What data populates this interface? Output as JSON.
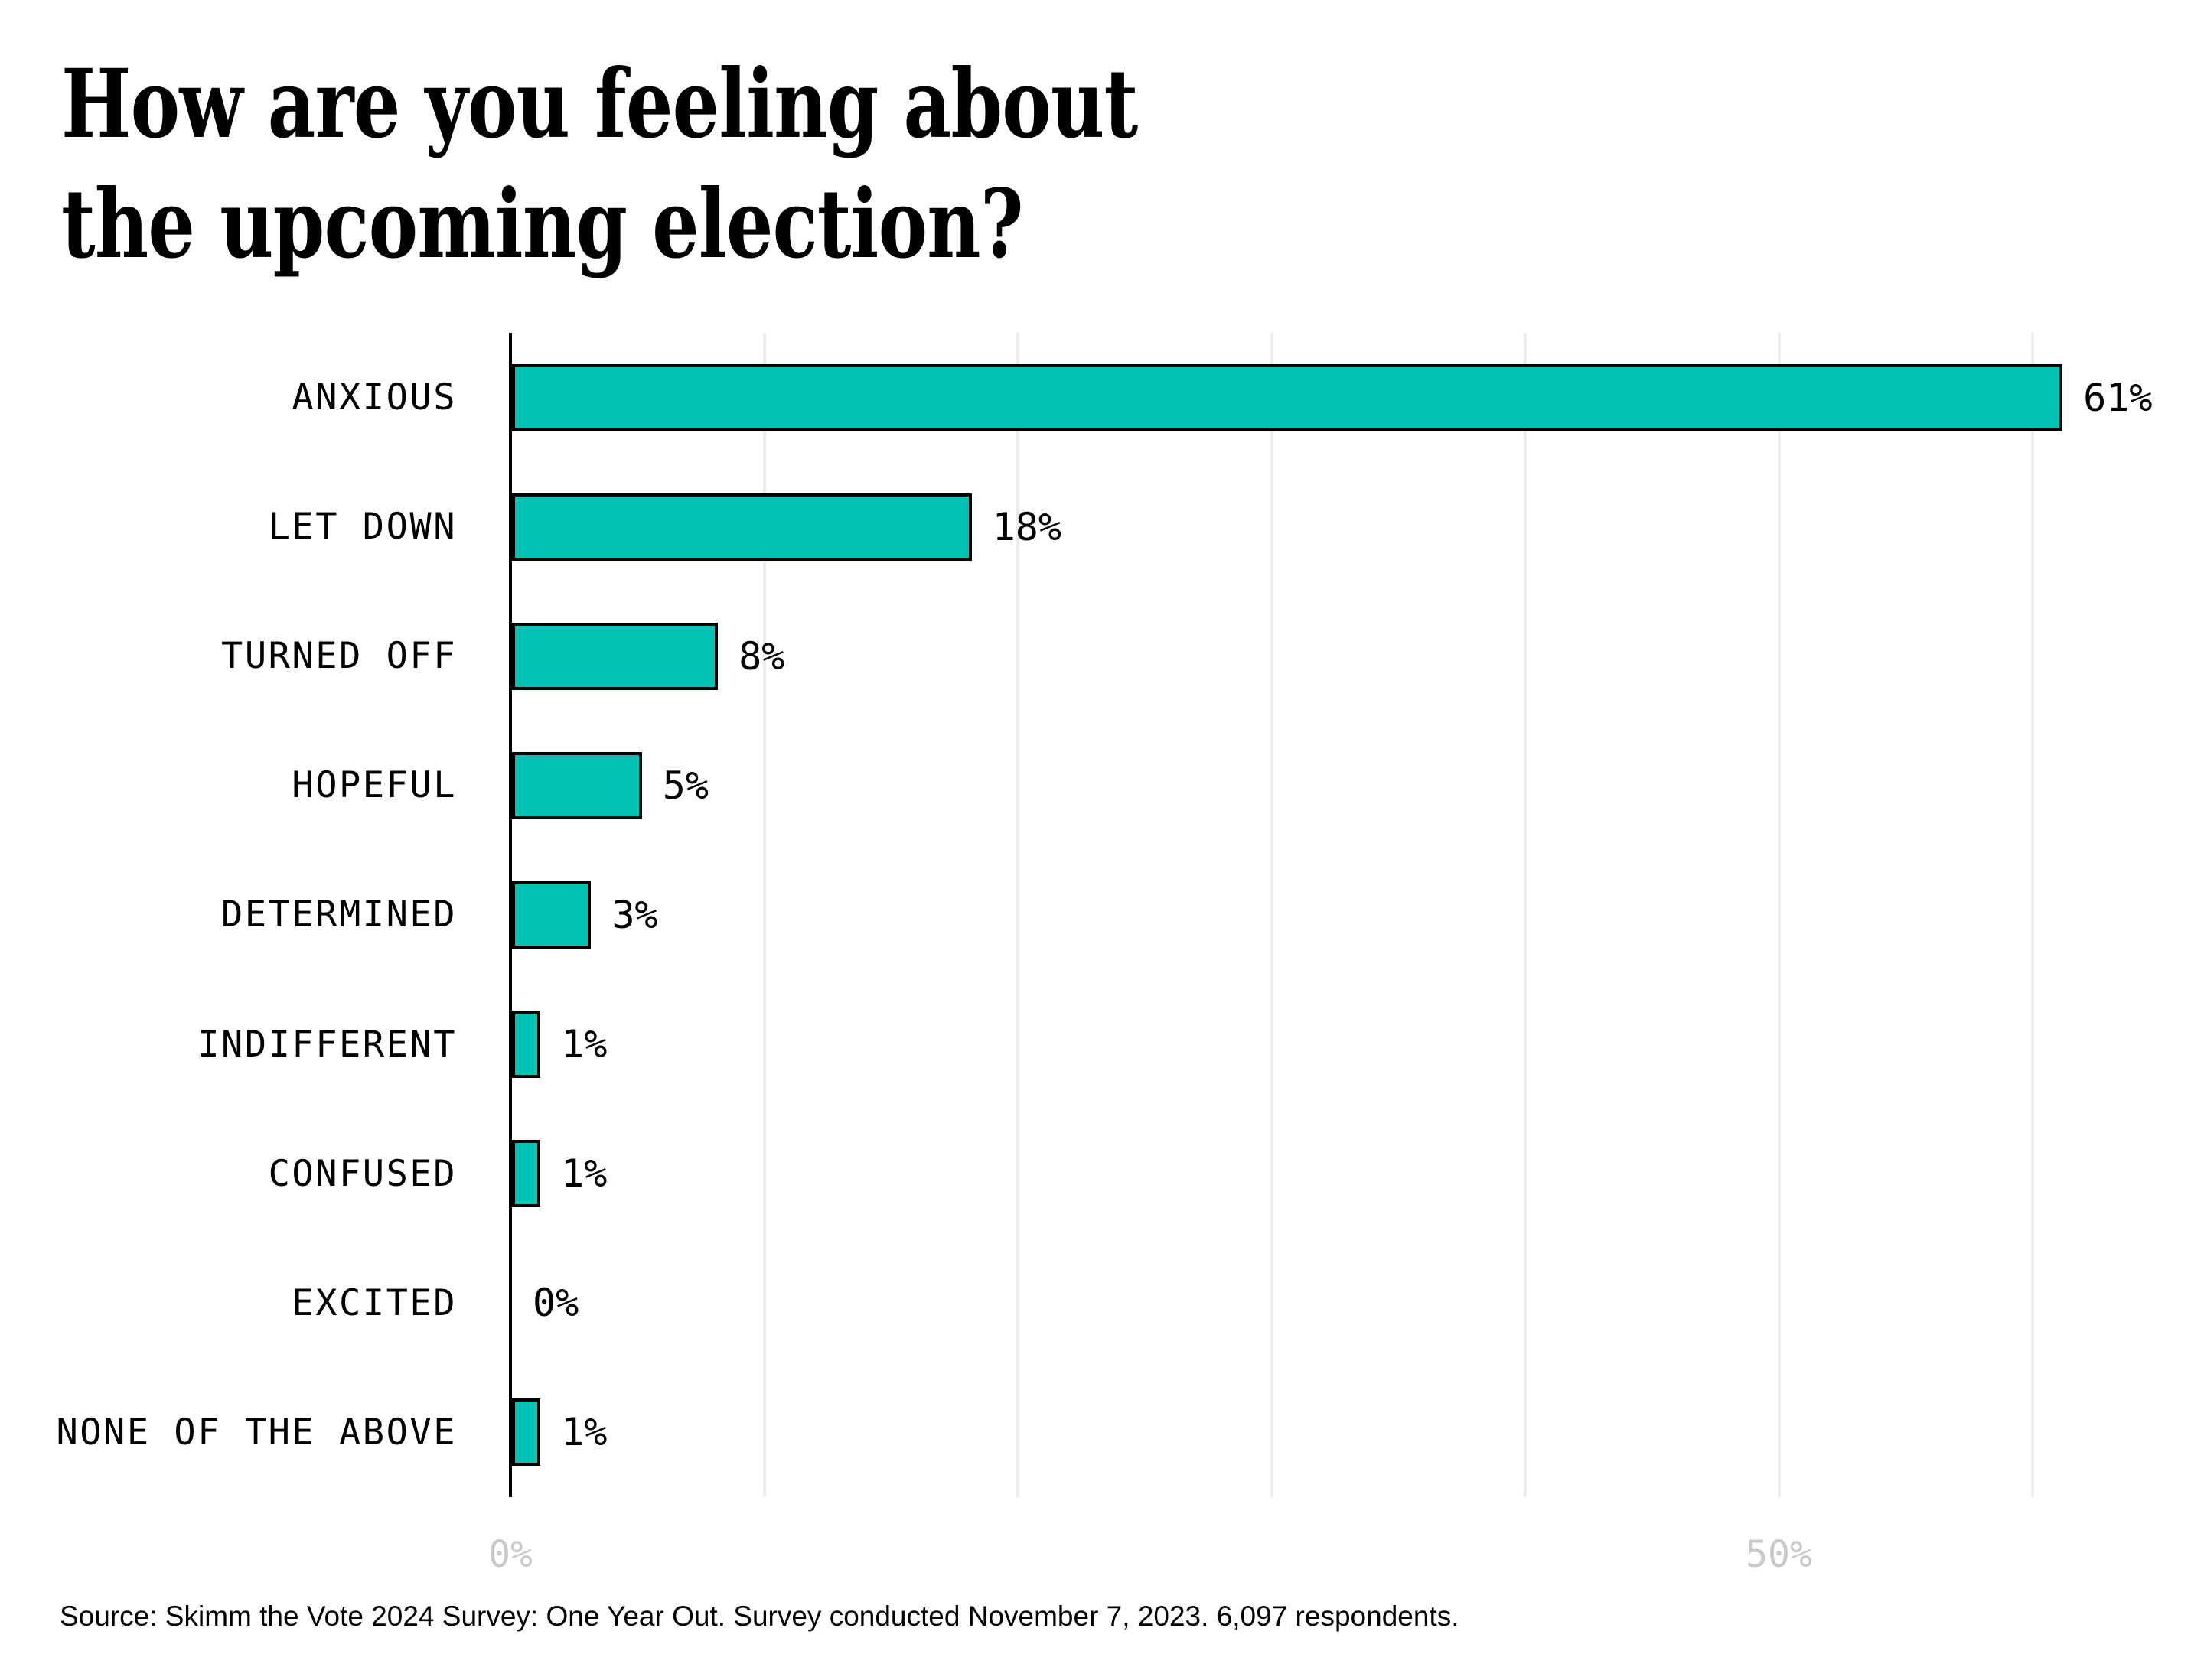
{
  "title": {
    "line1": "How are you feeling about",
    "line2": "the upcoming election?"
  },
  "chart_data": {
    "type": "bar",
    "orientation": "horizontal",
    "title": "How are you feeling about the upcoming election?",
    "categories": [
      "ANXIOUS",
      "LET DOWN",
      "TURNED OFF",
      "HOPEFUL",
      "DETERMINED",
      "INDIFFERENT",
      "CONFUSED",
      "EXCITED",
      "NONE OF THE ABOVE"
    ],
    "values": [
      61,
      18,
      8,
      5,
      3,
      1,
      1,
      0,
      1
    ],
    "value_labels": [
      "61%",
      "18%",
      "8%",
      "5%",
      "3%",
      "1%",
      "1%",
      "0%",
      "1%"
    ],
    "xlabel": "",
    "ylabel": "",
    "xlim": [
      0,
      64
    ],
    "x_ticks": [
      {
        "label": "0%",
        "percent": 0
      },
      {
        "label": "50%",
        "percent": 50
      }
    ],
    "gridlines_percent": [
      10,
      20,
      30,
      40,
      50,
      60
    ],
    "grid": true,
    "legend": false,
    "colors": {
      "bar_fill": "#00C3B3",
      "bar_border": "#000000",
      "gridline": "#ECECEC",
      "axis_line": "#000000",
      "tick_label": "#C9C9C9",
      "text": "#000000"
    }
  },
  "source": {
    "text": "Source: Skimm the Vote 2024 Survey: One Year Out. Survey conducted November 7, 2023. 6,097 respondents."
  }
}
